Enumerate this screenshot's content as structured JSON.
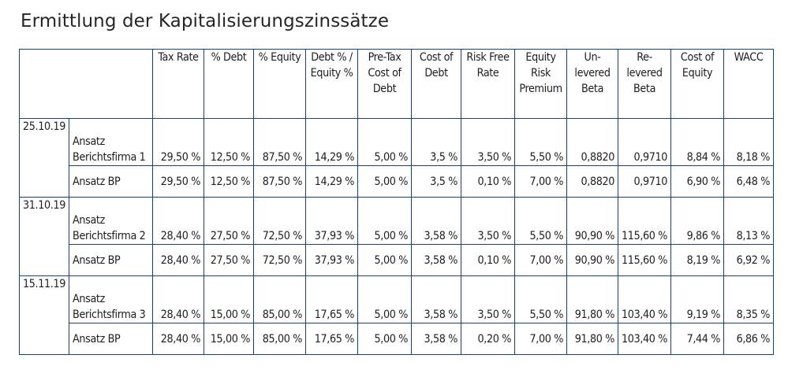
{
  "title": "Ermittlung der Kapitalisierungszinssätze",
  "table": {
    "headers": [
      "",
      "Tax Rate",
      "% Debt",
      "% Equity",
      "Debt % / Equity %",
      "Pre-Tax Cost of Debt",
      "Cost of Debt",
      "Risk Free Rate",
      "Equity Risk Premium",
      "Un-levered Beta",
      "Re-levered Beta",
      "Cost of Equity",
      "WACC"
    ],
    "header_lines": [
      [],
      [
        "Tax Rate"
      ],
      [
        "% Debt"
      ],
      [
        "% Equity"
      ],
      [
        "Debt % /",
        "Equity %"
      ],
      [
        "Pre-Tax",
        "Cost of",
        "Debt"
      ],
      [
        "Cost of",
        "Debt"
      ],
      [
        "Risk Free",
        "Rate"
      ],
      [
        "Equity",
        "Risk",
        "Premium"
      ],
      [
        "Un-",
        "levered",
        "Beta"
      ],
      [
        "Re-",
        "levered",
        "Beta"
      ],
      [
        "Cost of",
        "Equity"
      ],
      [
        "WACC"
      ]
    ],
    "groups": [
      {
        "date": "25.10.19",
        "rows": [
          {
            "label_lines": [
              "Ansatz",
              "Berichtsfirma 1"
            ],
            "values": [
              "29,50 %",
              "12,50 %",
              "87,50 %",
              "14,29 %",
              "5,00 %",
              "3,5 %",
              "3,50 %",
              "5,50 %",
              "0,8820",
              "0,9710",
              "8,84 %",
              "8,18 %"
            ]
          },
          {
            "label_lines": [
              "Ansatz BP"
            ],
            "values": [
              "29,50 %",
              "12,50 %",
              "87,50 %",
              "14,29 %",
              "5,00 %",
              "3,5 %",
              "0,10 %",
              "7,00 %",
              "0,8820",
              "0,9710",
              "6,90 %",
              "6,48 %"
            ]
          }
        ]
      },
      {
        "date": "31.10.19",
        "rows": [
          {
            "label_lines": [
              "Ansatz",
              "Berichtsfirma 2"
            ],
            "values": [
              "28,40 %",
              "27,50 %",
              "72,50 %",
              "37,93 %",
              "5,00 %",
              "3,58 %",
              "3,50 %",
              "5,50 %",
              "90,90 %",
              "115,60 %",
              "9,86 %",
              "8,13 %"
            ]
          },
          {
            "label_lines": [
              "Ansatz BP"
            ],
            "values": [
              "28,40 %",
              "27,50 %",
              "72,50 %",
              "37,93 %",
              "5,00 %",
              "3,58 %",
              "0,10 %",
              "7,00 %",
              "90,90 %",
              "115,60 %",
              "8,19 %",
              "6,92 %"
            ]
          }
        ]
      },
      {
        "date": "15.11.19",
        "rows": [
          {
            "label_lines": [
              "Ansatz",
              "Berichtsfirma 3"
            ],
            "values": [
              "28,40 %",
              "15,00 %",
              "85,00 %",
              "17,65 %",
              "5,00 %",
              "3,58 %",
              "3,50 %",
              "5,50 %",
              "91,80 %",
              "103,40 %",
              "9,19 %",
              "8,35 %"
            ]
          },
          {
            "label_lines": [
              "Ansatz BP"
            ],
            "values": [
              "28,40 %",
              "15,00 %",
              "85,00 %",
              "17,65 %",
              "5,00 %",
              "3,58 %",
              "0,20 %",
              "7,00 %",
              "91,80 %",
              "103,40 %",
              "7,44 %",
              "6,86 %"
            ]
          }
        ]
      }
    ]
  }
}
